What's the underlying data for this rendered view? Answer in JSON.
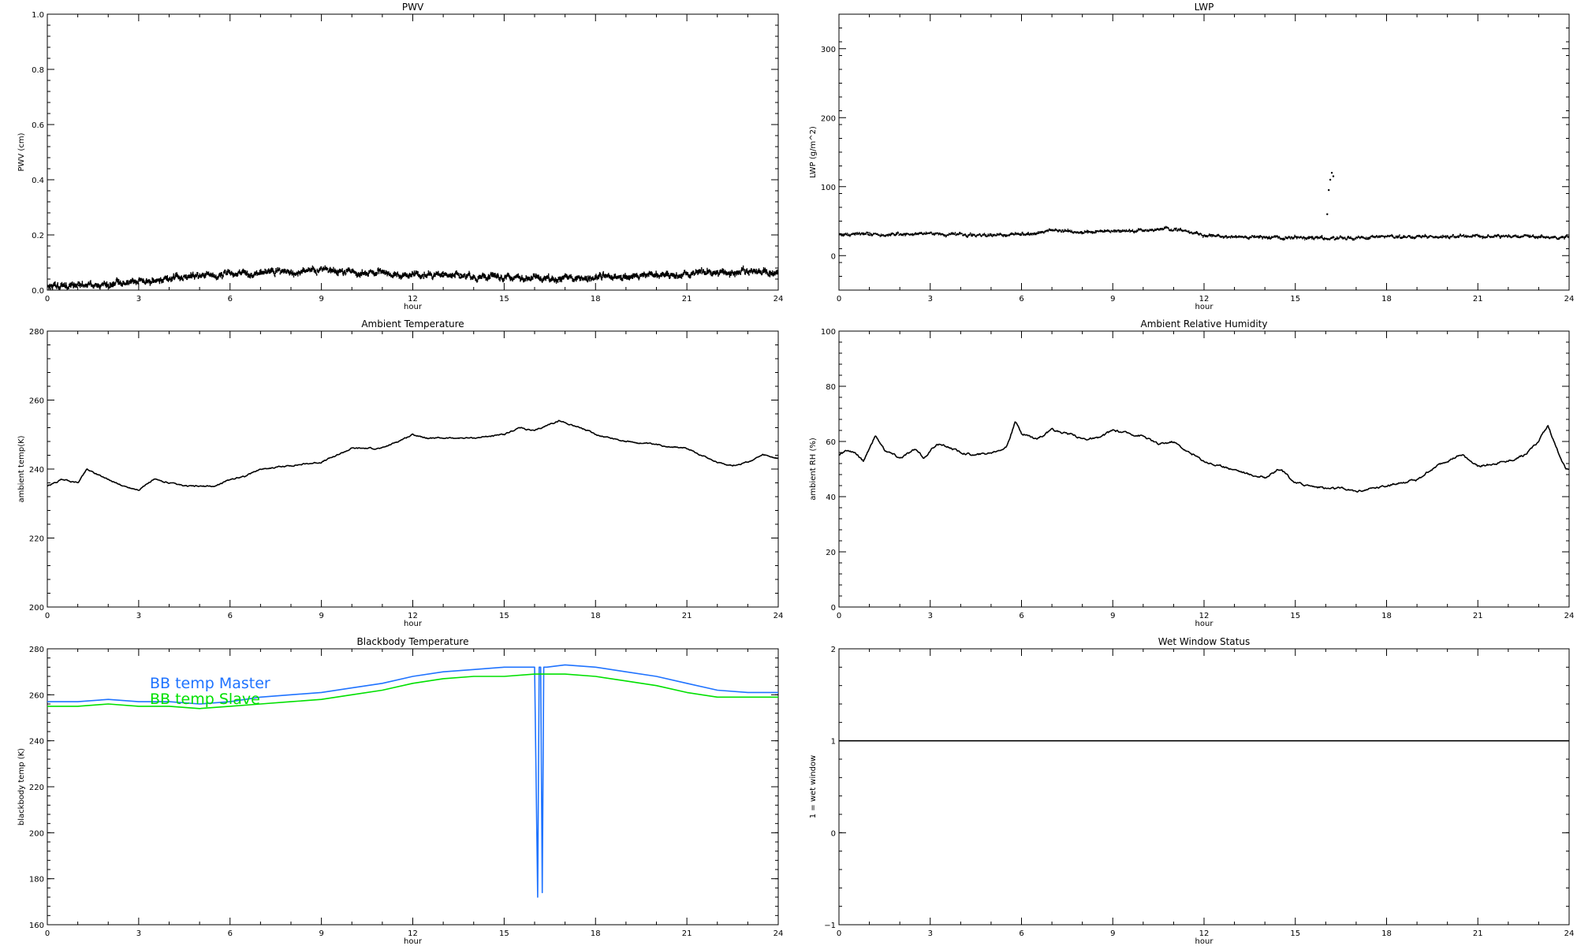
{
  "chart_data": [
    {
      "type": "scatter",
      "title": "PWV",
      "xlabel": "hour",
      "ylabel": "PWV (cm)",
      "xlim": [
        0,
        24
      ],
      "ylim": [
        0,
        1
      ],
      "xticks": [
        "0",
        "3",
        "6",
        "9",
        "12",
        "15",
        "18",
        "21",
        "24"
      ],
      "yticks": [
        "0.0",
        "0.2",
        "0.4",
        "0.6",
        "0.8",
        "1.0"
      ],
      "ytick_values": [
        0,
        0.2,
        0.4,
        0.6,
        0.8,
        1.0
      ],
      "noise": 0.012,
      "series": [
        {
          "color": "#000000",
          "style": "dots",
          "x": [
            0,
            1,
            2,
            3,
            4,
            5,
            6,
            7,
            8,
            9,
            10,
            11,
            12,
            13,
            14,
            15,
            16,
            17,
            18,
            19,
            20,
            21,
            22,
            23,
            24
          ],
          "y": [
            0.015,
            0.01,
            0.012,
            0.025,
            0.04,
            0.045,
            0.05,
            0.055,
            0.065,
            0.065,
            0.06,
            0.055,
            0.05,
            0.05,
            0.045,
            0.04,
            0.035,
            0.035,
            0.04,
            0.045,
            0.05,
            0.055,
            0.06,
            0.06,
            0.06
          ]
        }
      ]
    },
    {
      "type": "scatter",
      "title": "LWP",
      "xlabel": "hour",
      "ylabel": "LWP (g/m^2)",
      "xlim": [
        0,
        24
      ],
      "ylim": [
        -50,
        350
      ],
      "xticks": [
        "0",
        "3",
        "6",
        "9",
        "12",
        "15",
        "18",
        "21",
        "24"
      ],
      "yticks": [
        "0",
        "100",
        "200",
        "300"
      ],
      "ytick_values": [
        0,
        100,
        200,
        300
      ],
      "noise": 2.5,
      "series": [
        {
          "color": "#000000",
          "style": "dots",
          "x": [
            0,
            1,
            2,
            3,
            4,
            5,
            6,
            7,
            8,
            9,
            10,
            11,
            12,
            13,
            14,
            15,
            16,
            17,
            18,
            19,
            20,
            21,
            22,
            23,
            24
          ],
          "y": [
            30,
            30,
            30,
            30,
            28,
            28,
            30,
            35,
            33,
            35,
            35,
            38,
            28,
            26,
            25,
            25,
            24,
            24,
            26,
            26,
            26,
            27,
            27,
            26,
            25
          ]
        },
        {
          "color": "#000000",
          "style": "points",
          "x": [
            16.05,
            16.1,
            16.15,
            16.2,
            16.25
          ],
          "y": [
            60,
            95,
            110,
            120,
            115
          ]
        }
      ]
    },
    {
      "type": "line",
      "title": "Ambient Temperature",
      "xlabel": "hour",
      "ylabel": "ambient temp(K)",
      "xlim": [
        0,
        24
      ],
      "ylim": [
        200,
        280
      ],
      "xticks": [
        "0",
        "3",
        "6",
        "9",
        "12",
        "15",
        "18",
        "21",
        "24"
      ],
      "yticks": [
        "200",
        "220",
        "240",
        "260",
        "280"
      ],
      "ytick_values": [
        200,
        220,
        240,
        260,
        280
      ],
      "noise": 0.3,
      "series": [
        {
          "color": "#000000",
          "style": "line",
          "x": [
            0,
            0.5,
            1,
            1.3,
            2,
            2.5,
            3,
            3.5,
            4,
            4.5,
            5,
            5.5,
            6,
            6.5,
            7,
            8,
            9,
            9.5,
            10,
            11,
            11.5,
            12,
            12.5,
            13,
            14,
            15,
            15.5,
            16,
            16.5,
            16.8,
            17.5,
            18,
            19,
            20,
            21,
            22,
            22.5,
            23,
            23.5,
            24
          ],
          "y": [
            235,
            237,
            236,
            240,
            237,
            235,
            234,
            237,
            236,
            235,
            235,
            235,
            237,
            238,
            240,
            241,
            242,
            244,
            246,
            246,
            248,
            250,
            249,
            249,
            249,
            250,
            252,
            251,
            253,
            254,
            252,
            250,
            248,
            247,
            246,
            242,
            241,
            242,
            244,
            243
          ]
        }
      ]
    },
    {
      "type": "line",
      "title": "Ambient Relative Humidity",
      "xlabel": "hour",
      "ylabel": "ambient RH (%)",
      "xlim": [
        0,
        24
      ],
      "ylim": [
        0,
        100
      ],
      "xticks": [
        "0",
        "3",
        "6",
        "9",
        "12",
        "15",
        "18",
        "21",
        "24"
      ],
      "yticks": [
        "0",
        "20",
        "40",
        "60",
        "80",
        "100"
      ],
      "ytick_values": [
        0,
        20,
        40,
        60,
        80,
        100
      ],
      "noise": 0.6,
      "series": [
        {
          "color": "#000000",
          "style": "line",
          "x": [
            0,
            0.3,
            0.6,
            0.8,
            1.2,
            1.5,
            2,
            2.5,
            2.8,
            3.2,
            3.6,
            4,
            4.5,
            5,
            5.5,
            5.8,
            6,
            6.5,
            7,
            7.5,
            8,
            8.5,
            9,
            9.5,
            10,
            10.5,
            11,
            11.5,
            12,
            12.5,
            13,
            13.5,
            14,
            14.5,
            15,
            15.5,
            16,
            16.5,
            17,
            17.5,
            18,
            18.5,
            19,
            19.5,
            20,
            20.5,
            21,
            21.5,
            22,
            22.5,
            23,
            23.3,
            23.6,
            23.9,
            24
          ],
          "y": [
            55,
            57,
            55,
            53,
            62,
            57,
            54,
            57,
            54,
            59,
            58,
            56,
            55,
            56,
            58,
            67,
            63,
            61,
            64,
            63,
            61,
            61,
            64,
            63,
            62,
            59,
            60,
            56,
            53,
            51,
            50,
            48,
            47,
            50,
            45,
            44,
            43,
            43,
            42,
            43,
            44,
            45,
            46,
            50,
            53,
            55,
            51,
            52,
            53,
            55,
            60,
            66,
            57,
            50,
            50
          ]
        }
      ]
    },
    {
      "type": "line",
      "title": "Blackbody Temperature",
      "xlabel": "hour",
      "ylabel": "blackbody temp (K)",
      "xlim": [
        0,
        24
      ],
      "ylim": [
        160,
        280
      ],
      "xticks": [
        "0",
        "3",
        "6",
        "9",
        "12",
        "15",
        "18",
        "21",
        "24"
      ],
      "yticks": [
        "160",
        "180",
        "200",
        "220",
        "240",
        "260",
        "280"
      ],
      "ytick_values": [
        160,
        180,
        200,
        220,
        240,
        260,
        280
      ],
      "noise": 0,
      "legend": {
        "position": "top-left",
        "entries": [
          {
            "label": "BB temp Master",
            "color": "#1f73ff"
          },
          {
            "label": "BB temp Slave",
            "color": "#00e000"
          }
        ]
      },
      "series": [
        {
          "name": "BB temp Master",
          "color": "#1f73ff",
          "style": "line",
          "x": [
            0,
            1,
            2,
            3,
            4,
            5,
            6,
            7,
            8,
            9,
            10,
            11,
            12,
            13,
            14,
            15,
            16,
            16.1,
            16.15,
            16.2,
            16.25,
            16.3,
            16.35,
            16.4,
            17,
            18,
            19,
            20,
            21,
            22,
            23,
            24
          ],
          "y": [
            257,
            257,
            258,
            257,
            257,
            256,
            257,
            259,
            260,
            261,
            263,
            265,
            268,
            270,
            271,
            272,
            272,
            172,
            272,
            272,
            174,
            272,
            272,
            272,
            273,
            272,
            270,
            268,
            265,
            262,
            261,
            261
          ]
        },
        {
          "name": "BB temp Slave",
          "color": "#00e000",
          "style": "line",
          "x": [
            0,
            1,
            2,
            3,
            4,
            5,
            6,
            7,
            8,
            9,
            10,
            11,
            12,
            13,
            14,
            15,
            16,
            17,
            18,
            19,
            20,
            21,
            22,
            23,
            24
          ],
          "y": [
            255,
            255,
            256,
            255,
            255,
            254,
            255,
            256,
            257,
            258,
            260,
            262,
            265,
            267,
            268,
            268,
            269,
            269,
            268,
            266,
            264,
            261,
            259,
            259,
            259
          ]
        }
      ]
    },
    {
      "type": "line",
      "title": "Wet Window Status",
      "xlabel": "hour",
      "ylabel": "1 = wet window",
      "xlim": [
        0,
        24
      ],
      "ylim": [
        -1,
        2
      ],
      "xticks": [
        "0",
        "3",
        "6",
        "9",
        "12",
        "15",
        "18",
        "21",
        "24"
      ],
      "yticks": [
        "−1",
        "0",
        "1",
        "2"
      ],
      "ytick_values": [
        -1,
        0,
        1,
        2
      ],
      "noise": 0,
      "series": [
        {
          "color": "#000000",
          "style": "line",
          "x": [
            0,
            24
          ],
          "y": [
            1,
            1
          ]
        }
      ]
    }
  ]
}
